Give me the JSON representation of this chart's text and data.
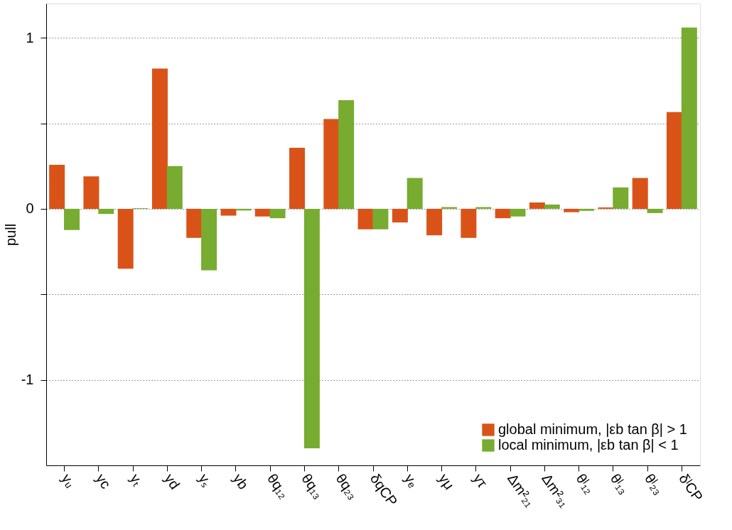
{
  "chart_data": {
    "type": "bar",
    "ylabel": "pull",
    "categories": [
      "yᵤ",
      "yc",
      "yₜ",
      "yd",
      "yₛ",
      "yb",
      "θq₁₂",
      "θq₁₃",
      "θq₂₃",
      "δqCP",
      "yₑ",
      "yμ",
      "yτ",
      "Δm²₂₁",
      "Δm²₃₁",
      "θˡ₁₂",
      "θˡ₁₃",
      "θˡ₂₃",
      "δˡCP"
    ],
    "series": [
      {
        "name": "global minimum, |εb tan β| > 1",
        "color": "#d95319",
        "values": [
          0.257,
          0.19,
          -0.35,
          0.82,
          -0.17,
          -0.04,
          -0.045,
          0.357,
          0.525,
          -0.12,
          -0.08,
          -0.155,
          -0.17,
          -0.055,
          0.037,
          -0.02,
          0.008,
          0.18,
          0.565
        ]
      },
      {
        "name": "local minimum, |εb tan β| < 1",
        "color": "#77ac30",
        "values": [
          -0.124,
          -0.03,
          0.004,
          0.25,
          -0.36,
          -0.01,
          -0.055,
          -1.4,
          0.635,
          -0.12,
          0.18,
          0.01,
          0.01,
          -0.045,
          0.025,
          -0.012,
          0.125,
          -0.025,
          1.06
        ]
      }
    ],
    "ylim": [
      -1.5,
      1.2
    ],
    "yticks": [
      -1,
      {
        "value": -0.5,
        "label": null
      },
      0,
      {
        "value": 0.5,
        "label": null
      },
      1
    ],
    "grid": "y",
    "legend": "bottom right"
  }
}
